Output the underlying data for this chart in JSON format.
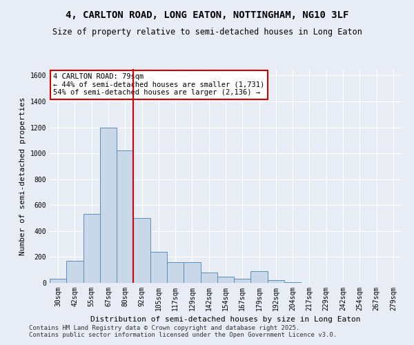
{
  "title": "4, CARLTON ROAD, LONG EATON, NOTTINGHAM, NG10 3LF",
  "subtitle": "Size of property relative to semi-detached houses in Long Eaton",
  "xlabel": "Distribution of semi-detached houses by size in Long Eaton",
  "ylabel": "Number of semi-detached properties",
  "categories": [
    "30sqm",
    "42sqm",
    "55sqm",
    "67sqm",
    "80sqm",
    "92sqm",
    "105sqm",
    "117sqm",
    "129sqm",
    "142sqm",
    "154sqm",
    "167sqm",
    "179sqm",
    "192sqm",
    "204sqm",
    "217sqm",
    "229sqm",
    "242sqm",
    "254sqm",
    "267sqm",
    "279sqm"
  ],
  "values": [
    30,
    170,
    530,
    1200,
    1020,
    500,
    240,
    160,
    160,
    80,
    50,
    30,
    90,
    20,
    5,
    0,
    0,
    0,
    0,
    0,
    0
  ],
  "bar_color": "#c8d8e8",
  "bar_edge_color": "#5b8db8",
  "vline_x": 4.5,
  "vline_color": "#cc0000",
  "annotation_text": "4 CARLTON ROAD: 79sqm\n← 44% of semi-detached houses are smaller (1,731)\n54% of semi-detached houses are larger (2,136) →",
  "annotation_box_color": "#ffffff",
  "annotation_box_edge_color": "#cc0000",
  "ylim": [
    0,
    1650
  ],
  "yticks": [
    0,
    200,
    400,
    600,
    800,
    1000,
    1200,
    1400,
    1600
  ],
  "footer": "Contains HM Land Registry data © Crown copyright and database right 2025.\nContains public sector information licensed under the Open Government Licence v3.0.",
  "background_color": "#e8ecf4",
  "plot_background_color": "#e8ecf4",
  "grid_color": "#ffffff",
  "title_fontsize": 10,
  "subtitle_fontsize": 8.5,
  "axis_label_fontsize": 8,
  "tick_fontsize": 7,
  "footer_fontsize": 6.5,
  "annotation_fontsize": 7.5
}
